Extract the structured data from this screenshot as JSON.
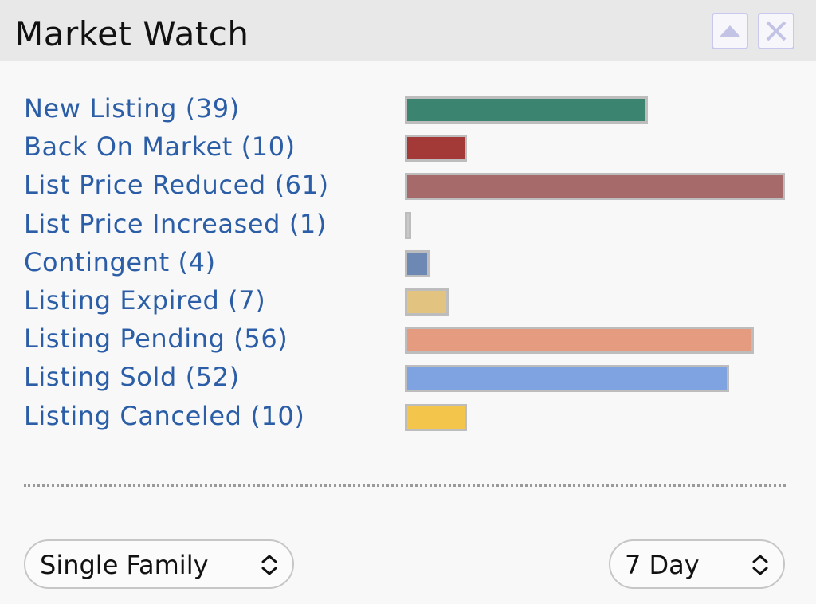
{
  "header": {
    "title": "Market Watch",
    "collapse_icon": "triangle-up-icon",
    "close_icon": "close-x-icon"
  },
  "chart_data": {
    "type": "bar",
    "orientation": "horizontal",
    "categories": [
      "New Listing (39)",
      "Back On Market (10)",
      "List Price Reduced (61)",
      "List Price Increased (1)",
      "Contingent (4)",
      "Listing Expired (7)",
      "Listing Pending (56)",
      "Listing Sold (52)",
      "Listing Canceled (10)"
    ],
    "values": [
      39,
      10,
      61,
      1,
      4,
      7,
      56,
      52,
      10
    ],
    "colors": [
      "#3b8570",
      "#a33a37",
      "#a56a69",
      "#c8c8c8",
      "#6d88b2",
      "#e2c37f",
      "#e49b7f",
      "#7fa3e0",
      "#f3c64b"
    ],
    "xlim": [
      0,
      61
    ],
    "grid": false,
    "legend": "none"
  },
  "filters": {
    "property_type": "Single Family",
    "time_range": "7 Day",
    "select_icon": "up-down-chevron-icon"
  },
  "accent_color": "#2b5ea7"
}
